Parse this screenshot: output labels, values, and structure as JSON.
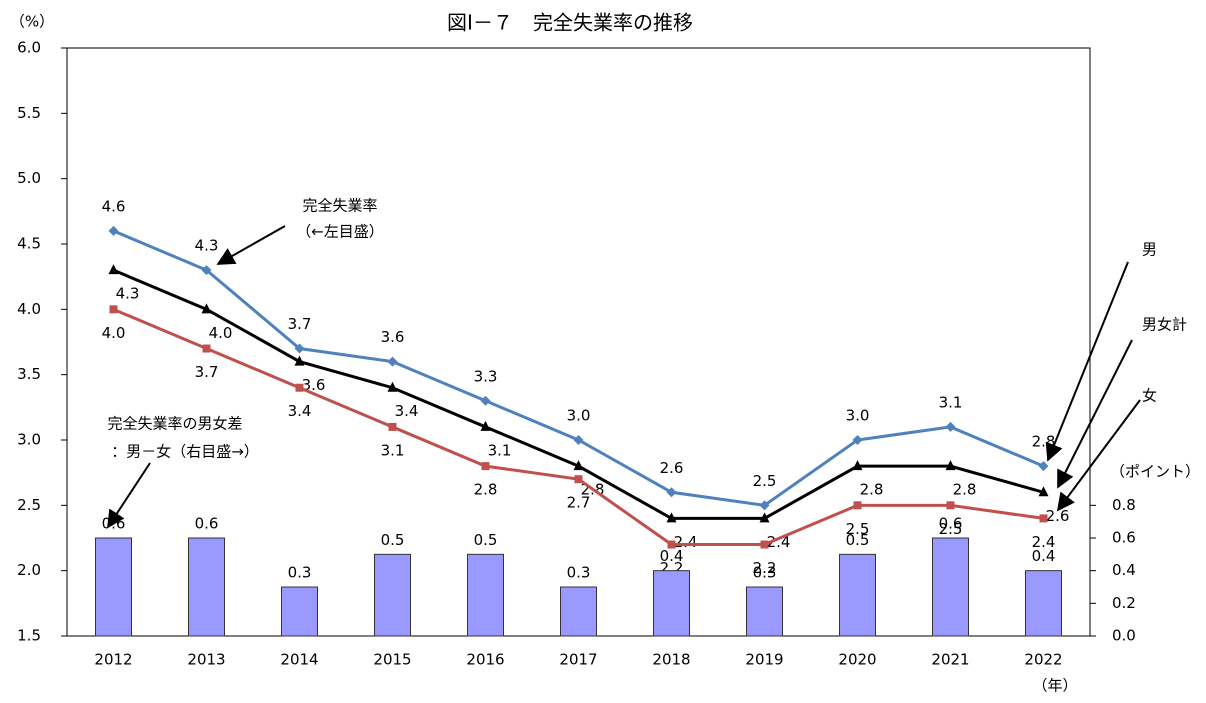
{
  "chart_data": {
    "type": "line",
    "title": "図Ⅰ－７　完全失業率の推移",
    "y_unit": "（%）",
    "y2_unit": "（ポイント）",
    "x_unit": "（年）",
    "categories": [
      "2012",
      "2013",
      "2014",
      "2015",
      "2016",
      "2017",
      "2018",
      "2019",
      "2020",
      "2021",
      "2022"
    ],
    "ylim": [
      1.5,
      6.0
    ],
    "yticks": [
      {
        "value": 1.5,
        "label": "1.5"
      },
      {
        "value": 2,
        "label": "2.0"
      },
      {
        "value": 2.5,
        "label": "2.5"
      },
      {
        "value": 3,
        "label": "3.0"
      },
      {
        "value": 3.5,
        "label": "3.5"
      },
      {
        "value": 4,
        "label": "4.0"
      },
      {
        "value": 4.5,
        "label": "4.5"
      },
      {
        "value": 5,
        "label": "5.0"
      },
      {
        "value": 5.5,
        "label": "5.5"
      },
      {
        "value": 6,
        "label": "6.0"
      }
    ],
    "y2lim": [
      0,
      3.6
    ],
    "y2ticks": [
      {
        "value": 0,
        "label": "0.0"
      },
      0.2,
      0.4,
      0.6,
      0.8
    ],
    "series": [
      {
        "name": "男",
        "color": "#4f81bd",
        "marker": "diamond",
        "values": [
          4.6,
          4.3,
          3.7,
          3.6,
          3.3,
          3.0,
          2.6,
          2.5,
          3.0,
          3.1,
          2.8
        ],
        "value_labels": [
          "4.6",
          "4.3",
          "3.7",
          "3.6",
          "3.3",
          "3.0",
          "2.6",
          "2.5",
          "3.0",
          "3.1",
          "2.8"
        ]
      },
      {
        "name": "男女計",
        "color": "#000000",
        "marker": "triangle",
        "values": [
          4.3,
          4.0,
          3.6,
          3.4,
          3.1,
          2.8,
          2.4,
          2.4,
          2.8,
          2.8,
          2.6
        ],
        "value_labels": [
          "4.3",
          "4.0",
          "3.6",
          "3.4",
          "3.1",
          "2.8",
          "2.4",
          "2.4",
          "2.8",
          "2.8",
          "2.6"
        ]
      },
      {
        "name": "女",
        "color": "#c0504d",
        "marker": "square",
        "values": [
          4.0,
          3.7,
          3.4,
          3.1,
          2.8,
          2.7,
          2.2,
          2.2,
          2.5,
          2.5,
          2.4
        ],
        "value_labels": [
          "4.0",
          "3.7",
          "3.4",
          "3.1",
          "2.8",
          "2.7",
          "2.2",
          "2.2",
          "2.5",
          "2.5",
          "2.4"
        ]
      },
      {
        "type": "bar",
        "axis": "y2",
        "color": "#9999ff",
        "values": [
          0.6,
          0.6,
          0.3,
          0.5,
          0.5,
          0.3,
          0.4,
          0.3,
          0.5,
          0.6,
          0.4
        ]
      }
    ],
    "annotations": [
      "完全失業率",
      "（←左目盛）",
      "完全失業率の男女差",
      "：男－女（右目盛→）"
    ]
  }
}
